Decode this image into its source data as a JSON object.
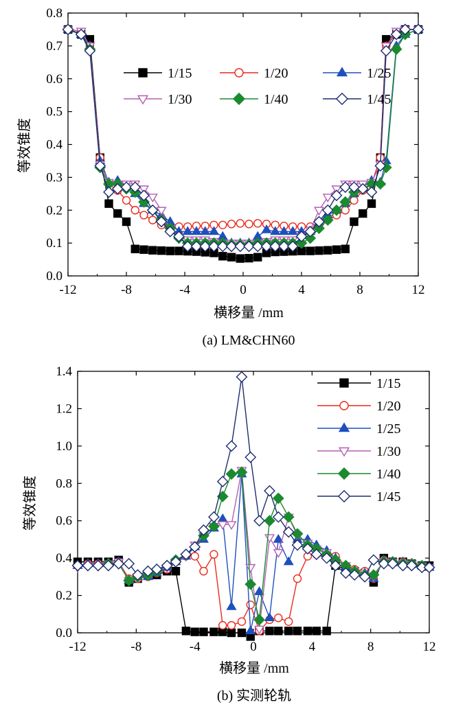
{
  "chart_data": [
    {
      "type": "line",
      "caption": "(a) LM&CHN60",
      "xlabel": "横移量 /mm",
      "ylabel": "等效锥度",
      "xlim": [
        -12,
        12
      ],
      "ylim": [
        0,
        0.8
      ],
      "xticks": [
        "-12",
        "-8",
        "-4",
        "0",
        "4",
        "8",
        "12"
      ],
      "xtick_values": [
        -12,
        -8,
        -4,
        0,
        4,
        8,
        12
      ],
      "yticks": [
        "0.0",
        "0.1",
        "0.2",
        "0.3",
        "0.4",
        "0.5",
        "0.6",
        "0.7",
        "0.8"
      ],
      "ytick_values": [
        0,
        0.1,
        0.2,
        0.3,
        0.4,
        0.5,
        0.6,
        0.7,
        0.8
      ],
      "legend_position": "top-center, 3 columns",
      "x": [
        -12,
        -11.1,
        -10.5,
        -9.8,
        -9.2,
        -8.6,
        -8,
        -7.4,
        -6.8,
        -6.2,
        -5.6,
        -5,
        -4.4,
        -3.8,
        -3.2,
        -2.6,
        -2,
        -1.4,
        -0.8,
        -0.2,
        0.4,
        1,
        1.6,
        2.2,
        2.8,
        3.4,
        4,
        4.6,
        5.2,
        5.8,
        6.4,
        7,
        7.6,
        8.2,
        8.8,
        9.4,
        9.8,
        10.5,
        11.1,
        12
      ],
      "series": [
        {
          "name": "1/15",
          "color": "#000000",
          "marker": "square",
          "values": [
            0.75,
            0.735,
            0.72,
            0.36,
            0.22,
            0.19,
            0.165,
            0.082,
            0.08,
            0.078,
            0.077,
            0.076,
            0.076,
            0.075,
            0.074,
            0.072,
            0.07,
            0.06,
            0.057,
            0.053,
            0.054,
            0.057,
            0.07,
            0.073,
            0.074,
            0.075,
            0.076,
            0.076,
            0.077,
            0.078,
            0.08,
            0.082,
            0.165,
            0.19,
            0.22,
            0.36,
            0.72,
            0.735,
            0.75,
            0.75
          ]
        },
        {
          "name": "1/20",
          "color": "#e8291c",
          "marker": "circle-open",
          "values": [
            0.75,
            0.738,
            0.7,
            0.36,
            0.28,
            0.26,
            0.23,
            0.2,
            0.185,
            0.17,
            0.155,
            0.15,
            0.15,
            0.15,
            0.152,
            0.152,
            0.155,
            0.155,
            0.158,
            0.16,
            0.158,
            0.16,
            0.158,
            0.155,
            0.152,
            0.15,
            0.15,
            0.15,
            0.155,
            0.17,
            0.185,
            0.2,
            0.23,
            0.26,
            0.28,
            0.36,
            0.7,
            0.738,
            0.75,
            0.75
          ]
        },
        {
          "name": "1/25",
          "color": "#1f4fbd",
          "marker": "triangle",
          "values": [
            0.75,
            0.735,
            0.7,
            0.35,
            0.285,
            0.29,
            0.27,
            0.25,
            0.22,
            0.2,
            0.185,
            0.165,
            0.135,
            0.135,
            0.135,
            0.135,
            0.135,
            0.12,
            0.1,
            0.1,
            0.1,
            0.12,
            0.14,
            0.135,
            0.135,
            0.135,
            0.135,
            0.135,
            0.165,
            0.185,
            0.2,
            0.22,
            0.25,
            0.27,
            0.29,
            0.285,
            0.35,
            0.7,
            0.735,
            0.75
          ]
        },
        {
          "name": "1/30",
          "color": "#b35fb2",
          "marker": "triangle-down-open",
          "values": [
            0.75,
            0.745,
            0.7,
            0.34,
            0.285,
            0.28,
            0.28,
            0.28,
            0.265,
            0.24,
            0.2,
            0.14,
            0.12,
            0.11,
            0.11,
            0.11,
            0.105,
            0.1,
            0.1,
            0.1,
            0.1,
            0.1,
            0.105,
            0.11,
            0.11,
            0.11,
            0.12,
            0.14,
            0.2,
            0.24,
            0.265,
            0.28,
            0.28,
            0.28,
            0.285,
            0.34,
            0.7,
            0.745,
            0.75,
            0.75
          ]
        },
        {
          "name": "1/40",
          "color": "#1b8a2e",
          "marker": "diamond",
          "values": [
            0.75,
            0.735,
            0.69,
            0.33,
            0.28,
            0.28,
            0.265,
            0.255,
            0.225,
            0.2,
            0.17,
            0.145,
            0.115,
            0.1,
            0.1,
            0.1,
            0.1,
            0.1,
            0.095,
            0.095,
            0.095,
            0.1,
            0.1,
            0.1,
            0.1,
            0.1,
            0.1,
            0.115,
            0.145,
            0.17,
            0.2,
            0.225,
            0.255,
            0.265,
            0.28,
            0.28,
            0.33,
            0.69,
            0.735,
            0.75
          ]
        },
        {
          "name": "1/45",
          "color": "#1d2b6e",
          "marker": "diamond-open",
          "values": [
            0.75,
            0.735,
            0.685,
            0.335,
            0.255,
            0.265,
            0.27,
            0.27,
            0.245,
            0.2,
            0.165,
            0.135,
            0.12,
            0.09,
            0.09,
            0.09,
            0.09,
            0.09,
            0.09,
            0.09,
            0.09,
            0.09,
            0.09,
            0.09,
            0.09,
            0.09,
            0.12,
            0.135,
            0.165,
            0.2,
            0.245,
            0.27,
            0.27,
            0.265,
            0.255,
            0.335,
            0.685,
            0.735,
            0.75,
            0.75
          ]
        }
      ]
    },
    {
      "type": "line",
      "caption": "(b) 实测轮轨",
      "xlabel": "横移量 /mm",
      "ylabel": "等效锥度",
      "xlim": [
        -12,
        12
      ],
      "ylim": [
        0,
        1.4
      ],
      "xticks": [
        "-12",
        "-8",
        "-4",
        "0",
        "4",
        "8",
        "12"
      ],
      "xtick_values": [
        -12,
        -8,
        -4,
        0,
        4,
        8,
        12
      ],
      "yticks": [
        "0.0",
        "0.2",
        "0.4",
        "0.6",
        "0.8",
        "1.0",
        "1.2",
        "1.4"
      ],
      "ytick_values": [
        0,
        0.2,
        0.4,
        0.6,
        0.8,
        1.0,
        1.2,
        1.4
      ],
      "legend_position": "top-right",
      "x": [
        -12,
        -11.3,
        -10.6,
        -9.9,
        -9.2,
        -8.5,
        -7.9,
        -7.2,
        -6.6,
        -5.9,
        -5.3,
        -4.6,
        -4.0,
        -3.4,
        -2.7,
        -2.1,
        -1.5,
        -0.8,
        -0.2,
        0.4,
        1.1,
        1.7,
        2.4,
        3.0,
        3.7,
        4.3,
        5.0,
        5.6,
        6.3,
        6.9,
        7.6,
        8.2,
        8.9,
        9.5,
        10.2,
        10.8,
        11.5,
        12
      ],
      "series": [
        {
          "name": "1/15",
          "color": "#000000",
          "marker": "square",
          "values": [
            0.38,
            0.38,
            0.38,
            0.38,
            0.39,
            0.27,
            0.29,
            0.31,
            0.31,
            0.33,
            0.33,
            0.01,
            0.005,
            0.005,
            0.005,
            0.005,
            0.0,
            0.0,
            -0.02,
            0.01,
            0.01,
            0.01,
            0.01,
            0.01,
            0.01,
            0.01,
            0.01,
            0.36,
            0.34,
            0.33,
            0.32,
            0.27,
            0.4,
            0.38,
            0.38,
            0.37,
            0.36,
            0.36
          ]
        },
        {
          "name": "1/20",
          "color": "#e8291c",
          "marker": "circle-open",
          "values": [
            0.36,
            0.37,
            0.37,
            0.37,
            0.38,
            0.29,
            0.29,
            0.3,
            0.32,
            0.34,
            0.38,
            0.41,
            0.41,
            0.33,
            0.42,
            0.04,
            0.04,
            0.06,
            0.15,
            0.01,
            0.07,
            0.08,
            0.06,
            0.29,
            0.41,
            0.42,
            0.41,
            0.41,
            0.36,
            0.34,
            0.33,
            0.29,
            0.39,
            0.38,
            0.38,
            0.37,
            0.36,
            0.35
          ]
        },
        {
          "name": "1/25",
          "color": "#1f4fbd",
          "marker": "triangle",
          "values": [
            0.36,
            0.37,
            0.37,
            0.37,
            0.38,
            0.28,
            0.3,
            0.3,
            0.32,
            0.35,
            0.38,
            0.41,
            0.46,
            0.5,
            0.56,
            0.61,
            0.14,
            0.85,
            0.01,
            0.22,
            0.08,
            0.5,
            0.38,
            0.5,
            0.5,
            0.47,
            0.44,
            0.4,
            0.35,
            0.33,
            0.32,
            0.29,
            0.39,
            0.38,
            0.38,
            0.37,
            0.36,
            0.35
          ]
        },
        {
          "name": "1/30",
          "color": "#b35fb2",
          "marker": "triangle-down-open",
          "values": [
            0.35,
            0.36,
            0.36,
            0.37,
            0.38,
            0.28,
            0.3,
            0.31,
            0.33,
            0.35,
            0.38,
            0.41,
            0.47,
            0.52,
            0.57,
            0.58,
            0.58,
            0.87,
            0.35,
            0.02,
            0.51,
            0.43,
            0.62,
            0.52,
            0.48,
            0.45,
            0.43,
            0.39,
            0.36,
            0.33,
            0.32,
            0.3,
            0.38,
            0.38,
            0.37,
            0.37,
            0.36,
            0.35
          ]
        },
        {
          "name": "1/40",
          "color": "#1b8a2e",
          "marker": "diamond",
          "values": [
            0.36,
            0.36,
            0.36,
            0.37,
            0.37,
            0.28,
            0.3,
            0.31,
            0.33,
            0.36,
            0.39,
            0.42,
            0.46,
            0.52,
            0.57,
            0.73,
            0.85,
            0.86,
            0.26,
            0.07,
            0.6,
            0.72,
            0.62,
            0.53,
            0.47,
            0.45,
            0.42,
            0.39,
            0.36,
            0.33,
            0.31,
            0.31,
            0.38,
            0.38,
            0.37,
            0.37,
            0.36,
            0.35
          ]
        },
        {
          "name": "1/45",
          "color": "#1d2b6e",
          "marker": "diamond-open",
          "values": [
            0.36,
            0.36,
            0.36,
            0.36,
            0.37,
            0.37,
            0.31,
            0.33,
            0.34,
            0.36,
            0.38,
            0.42,
            0.46,
            0.55,
            0.62,
            0.81,
            1.0,
            1.37,
            0.94,
            0.6,
            0.76,
            0.62,
            0.54,
            0.47,
            0.45,
            0.42,
            0.4,
            0.36,
            0.32,
            0.31,
            0.3,
            0.39,
            0.37,
            0.37,
            0.36,
            0.36,
            0.35,
            0.35
          ]
        }
      ]
    }
  ]
}
